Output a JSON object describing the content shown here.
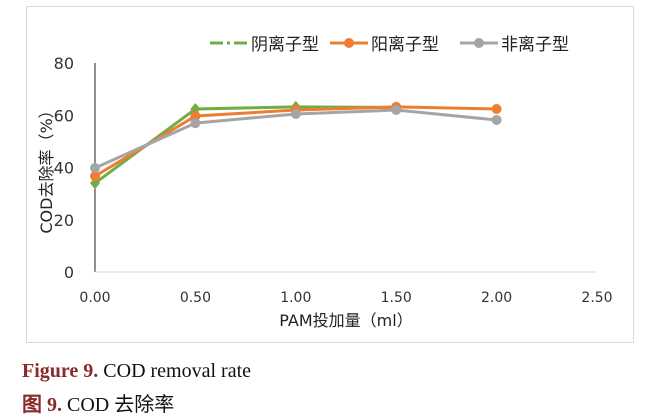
{
  "chart_data": {
    "type": "line",
    "xlabel": "PAM投加量（ml）",
    "ylabel": "COD去除率（%）",
    "xlim": [
      0,
      2.5
    ],
    "ylim": [
      0,
      80
    ],
    "xticks": [
      "0.00",
      "0.50",
      "1.00",
      "1.50",
      "2.00",
      "2.50"
    ],
    "yticks": [
      "0",
      "20",
      "40",
      "60",
      "80"
    ],
    "grid": false,
    "legend": "top-right",
    "x": [
      0,
      0.5,
      1.0,
      1.5,
      2.0
    ],
    "series": [
      {
        "name": "阴离子型",
        "color": "#70ad47",
        "marker": "diamond",
        "values": [
          34,
          62.4,
          63.2,
          63,
          null
        ]
      },
      {
        "name": "阳离子型",
        "color": "#ed7d31",
        "marker": "circle",
        "values": [
          36.7,
          59.7,
          62,
          63.2,
          62.4
        ]
      },
      {
        "name": "非离子型",
        "color": "#a5a5a5",
        "marker": "circle",
        "values": [
          39.8,
          57,
          60.5,
          62,
          58.2
        ]
      }
    ]
  },
  "caption": {
    "en_label": "Figure 9.",
    "en_text": " COD removal rate",
    "zh_label": "图 9.",
    "zh_text": " COD 去除率"
  }
}
